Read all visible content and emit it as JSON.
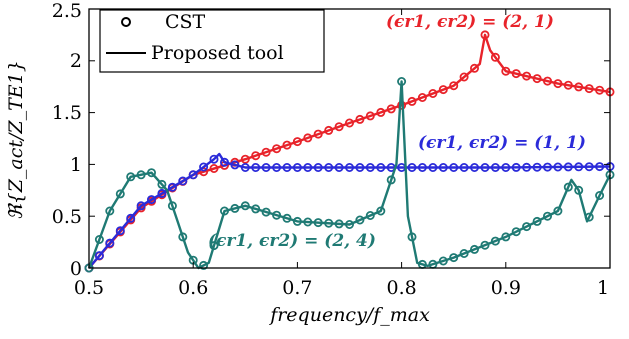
{
  "chart_data": {
    "type": "line",
    "x_label": "frequency/f_max",
    "y_label": "ℜ{Z_act/Z_TE1}",
    "xlim": [
      0.5,
      1.0
    ],
    "ylim": [
      0,
      2.5
    ],
    "x_ticks": [
      "0.5",
      "0.6",
      "0.7",
      "0.8",
      "0.9",
      "1"
    ],
    "y_ticks": [
      "0",
      "0.5",
      "1",
      "1.5",
      "2",
      "2.5"
    ],
    "grid": false,
    "legend": {
      "placement": "top-left",
      "entries": [
        {
          "label": "CST",
          "style": "circle-markers"
        },
        {
          "label": "Proposed tool",
          "style": "solid-line"
        }
      ]
    },
    "series": [
      {
        "label_text": "(ϵr1, ϵr2) = (2, 1)",
        "color": "#e8232a",
        "x": [
          0.5,
          0.55,
          0.6,
          0.65,
          0.7,
          0.75,
          0.8,
          0.85,
          0.875,
          0.88,
          0.885,
          0.9,
          0.95,
          1.0
        ],
        "y": [
          0.0,
          0.58,
          0.9,
          1.05,
          1.22,
          1.4,
          1.57,
          1.76,
          1.97,
          2.25,
          2.1,
          1.9,
          1.78,
          1.7
        ]
      },
      {
        "label_text": "(ϵr1, ϵr2) = (1, 1)",
        "color": "#2b2bd9",
        "x": [
          0.5,
          0.55,
          0.6,
          0.62,
          0.625,
          0.63,
          0.65,
          0.7,
          0.8,
          0.9,
          1.0
        ],
        "y": [
          0.0,
          0.6,
          0.9,
          1.05,
          1.1,
          1.02,
          0.97,
          0.97,
          0.97,
          0.97,
          0.98
        ]
      },
      {
        "label_text": "(ϵr1, ϵr2) = (2, 4)",
        "color": "#1f7a74",
        "x": [
          0.5,
          0.52,
          0.54,
          0.56,
          0.575,
          0.585,
          0.595,
          0.605,
          0.615,
          0.63,
          0.65,
          0.7,
          0.75,
          0.78,
          0.795,
          0.8,
          0.806,
          0.815,
          0.825,
          0.85,
          0.9,
          0.95,
          0.963,
          0.97,
          0.978,
          0.99,
          1.0
        ],
        "y": [
          0.0,
          0.55,
          0.88,
          0.92,
          0.75,
          0.45,
          0.15,
          0.0,
          0.05,
          0.55,
          0.6,
          0.45,
          0.42,
          0.55,
          1.0,
          1.8,
          0.5,
          0.05,
          0.02,
          0.1,
          0.3,
          0.55,
          0.85,
          0.75,
          0.45,
          0.7,
          0.9
        ]
      }
    ]
  }
}
